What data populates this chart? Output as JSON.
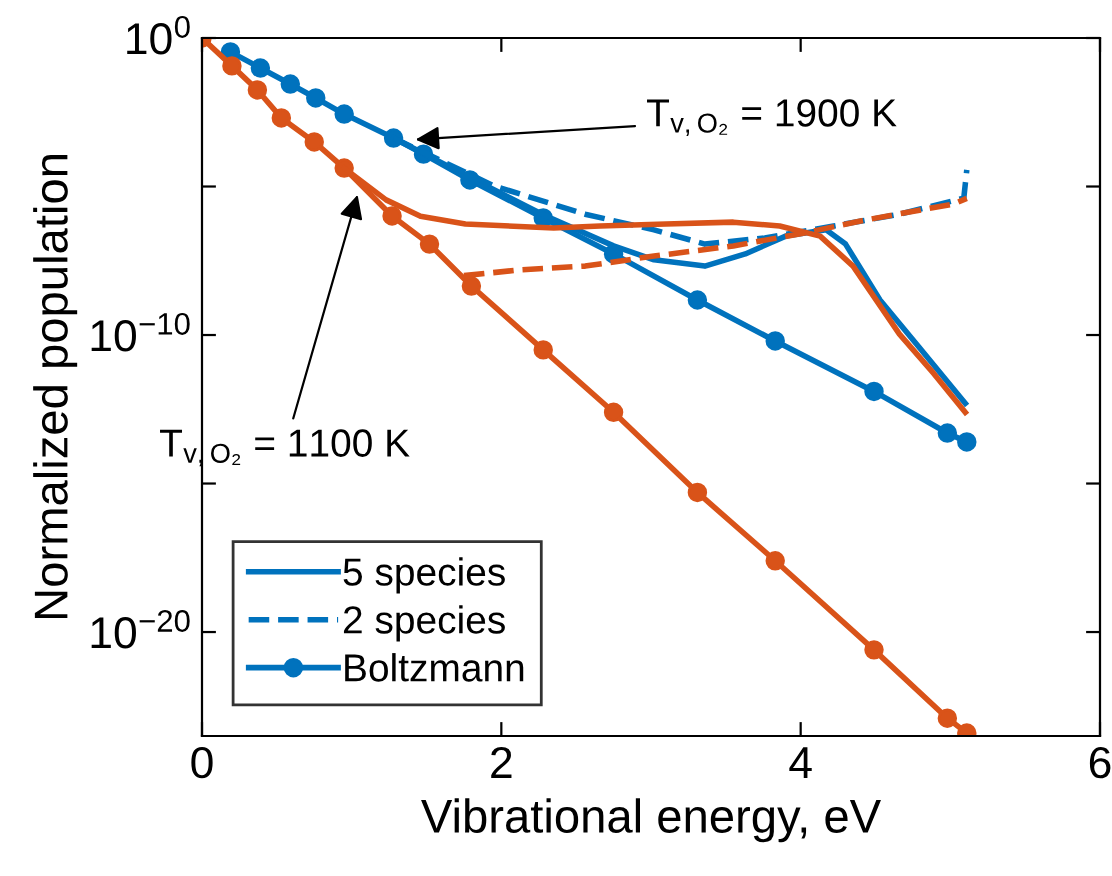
{
  "chart_data": {
    "type": "line",
    "xlabel": "Vibrational energy, eV",
    "ylabel": "Normalized population",
    "log": "y",
    "xlim": [
      0,
      6
    ],
    "xticks": [
      0,
      2,
      4,
      6
    ],
    "ylim": [
      3.16e-24,
      1
    ],
    "yticks": [
      {
        "value": 1,
        "label": "10$^{0}$"
      },
      {
        "value": 1e-05,
        "label": null
      },
      {
        "value": 1e-10,
        "label": "10$^{−10}$"
      },
      {
        "value": 1e-15,
        "label": null
      },
      {
        "value": 1e-20,
        "label": "10$^{−20}$"
      }
    ],
    "grid": false,
    "legend": "bottom left",
    "annotations": [
      {
        "text": "T$_{v,O₂}$ = 1900 K",
        "x": 1.39,
        "y": 0.000372
      },
      {
        "text": "T$_{v,O₂}$ = 1100 K",
        "x": 1.05,
        "y": 7.94e-06
      }
    ],
    "series": [
      {
        "name": "5 species",
        "color": "#0072bd",
        "line_style": "solid",
        "marker": "none",
        "x": [
          1.28,
          1.79,
          2.28,
          2.75,
          3.02,
          3.36,
          3.63,
          3.9,
          4.17,
          4.3,
          4.53,
          4.79,
          5.1
        ],
        "values": [
          0.000427,
          2e-05,
          1.12e-06,
          1e-07,
          3.39e-08,
          2.09e-08,
          5.37e-08,
          2.14e-07,
          3.47e-07,
          1.15e-07,
          1.51e-09,
          3.98e-11,
          5.01e-13
        ]
      },
      {
        "name": "2 species",
        "color": "#0072bd",
        "line_style": "dashed",
        "marker": "none",
        "x": [
          1.28,
          1.95,
          2.56,
          3.02,
          3.36,
          3.76,
          4.22,
          4.66,
          5.09,
          5.11
        ],
        "values": [
          0.000427,
          1.05e-05,
          1.17e-06,
          3.47e-07,
          1.15e-07,
          1.86e-07,
          4.68e-07,
          1.17e-06,
          4.07e-06,
          3.63e-05
        ]
      },
      {
        "name": "Boltzmann",
        "color": "#0072bd",
        "line_style": "solid",
        "marker": "circle",
        "x": [
          0.19,
          0.39,
          0.59,
          0.76,
          0.95,
          1.28,
          1.48,
          1.79,
          2.28,
          2.75,
          3.31,
          3.83,
          4.49,
          4.98,
          5.11
        ],
        "values": [
          0.339,
          0.0977,
          0.0282,
          0.00955,
          0.00275,
          0.000427,
          0.000123,
          1.66e-05,
          8.71e-07,
          5.37e-08,
          1.51e-09,
          6.31e-11,
          1.26e-12,
          5.01e-14,
          2.51e-14
        ]
      },
      {
        "color": "#d95319",
        "line_style": "solid",
        "marker": "none",
        "x": [
          0.95,
          1.23,
          1.46,
          1.76,
          2.35,
          2.66,
          3.1,
          3.55,
          3.86,
          4.13,
          4.35,
          4.66,
          4.89,
          5.1
        ],
        "values": [
          4.17e-05,
          3.55e-06,
          1e-06,
          5.5e-07,
          3.98e-07,
          4.68e-07,
          5.5e-07,
          6.31e-07,
          4.68e-07,
          2.14e-07,
          2.09e-08,
          1.07e-10,
          5.01e-12,
          2.51e-13
        ]
      },
      {
        "color": "#d95319",
        "line_style": "dashed",
        "marker": "none",
        "x": [
          1.75,
          2.12,
          2.56,
          3.02,
          3.55,
          3.99,
          4.43,
          5.02,
          5.11
        ],
        "values": [
          1e-08,
          1.55e-08,
          2.09e-08,
          4.57e-08,
          1e-07,
          2.51e-07,
          7.41e-07,
          2.57e-06,
          3.98e-06
        ]
      },
      {
        "color": "#d95319",
        "line_style": "solid",
        "marker": "circle",
        "x": [
          0,
          0.2,
          0.37,
          0.53,
          0.75,
          0.95,
          1.27,
          1.52,
          1.8,
          2.28,
          2.75,
          3.31,
          3.83,
          4.49,
          4.98,
          5.11
        ],
        "values": [
          1,
          0.115,
          0.0178,
          0.00204,
          0.000316,
          4.17e-05,
          1.02e-06,
          1.15e-07,
          4.47e-09,
          3.16e-11,
          2.51e-13,
          5.01e-16,
          2.51e-18,
          2.51e-21,
          1.26e-23,
          3.98e-24
        ]
      }
    ]
  }
}
